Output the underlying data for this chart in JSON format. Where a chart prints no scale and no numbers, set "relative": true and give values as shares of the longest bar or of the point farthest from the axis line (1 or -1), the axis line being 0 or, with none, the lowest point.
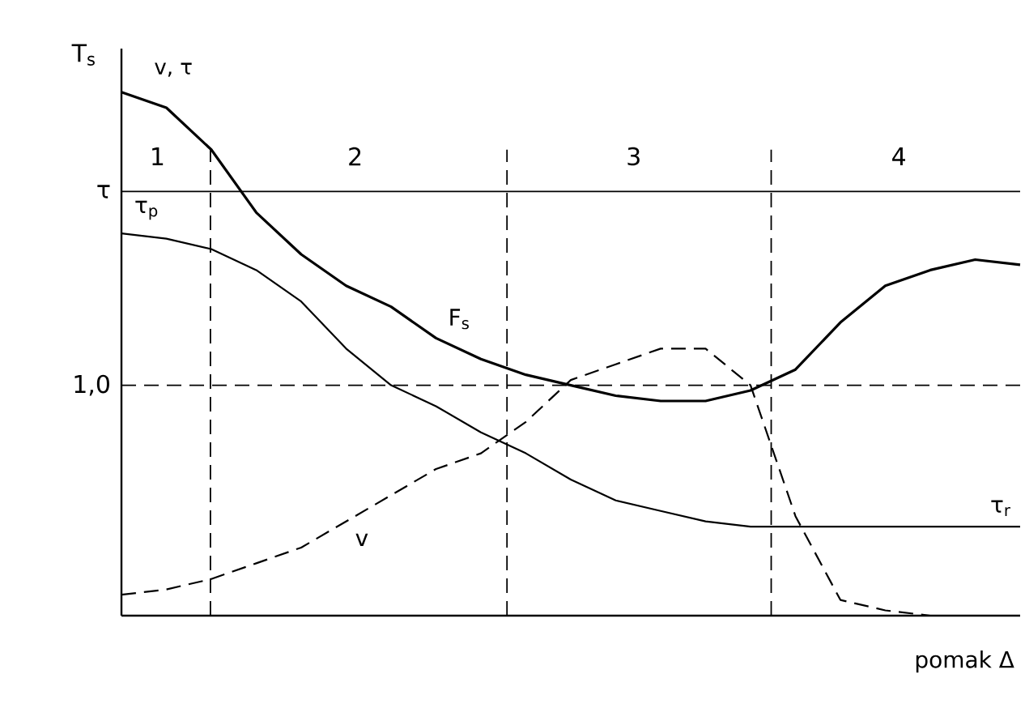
{
  "chart_data": {
    "type": "line",
    "relative": true,
    "ylabel": "T$_{s}$",
    "xlabel": "pomak Δ",
    "categories": [
      null,
      null,
      null,
      null,
      null,
      null,
      null,
      null,
      null,
      null,
      null,
      null,
      null,
      null,
      null,
      null,
      null,
      null,
      null,
      null,
      null
    ],
    "series": [
      {
        "name": "F$_{s}$",
        "color": "#000000",
        "line_style": "solid",
        "values": [
          1.0,
          0.97,
          0.89,
          0.77,
          0.69,
          0.63,
          0.59,
          0.53,
          0.49,
          0.46,
          0.44,
          0.42,
          0.41,
          0.41,
          0.43,
          0.47,
          0.56,
          0.63,
          0.66,
          0.68,
          0.67
        ]
      },
      {
        "name": "τ$_{r}$",
        "color": "#000000",
        "line_style": "solid",
        "values": [
          0.73,
          0.72,
          0.7,
          0.66,
          0.6,
          0.51,
          0.44,
          0.4,
          0.35,
          0.31,
          0.26,
          0.22,
          0.2,
          0.18,
          0.17,
          0.17,
          0.17,
          0.17,
          0.17,
          0.17,
          0.17
        ]
      },
      {
        "name": "v",
        "color": "#000000",
        "line_style": "dashed",
        "values": [
          0.04,
          0.05,
          0.07,
          0.1,
          0.13,
          0.18,
          0.23,
          0.28,
          0.31,
          0.37,
          0.45,
          0.48,
          0.51,
          0.51,
          0.44,
          0.19,
          0.03,
          0.01,
          0,
          null,
          null
        ]
      }
    ],
    "ref_lines": [
      {
        "axis": "y",
        "value": 0.81,
        "line_style": "solid"
      },
      {
        "axis": "y",
        "value": 0.44,
        "line_style": "dashed"
      }
    ],
    "annotations": [
      "v, τ",
      "τ$_{p}$",
      "1",
      "2",
      "3",
      "4",
      "τ",
      "1,0"
    ]
  }
}
